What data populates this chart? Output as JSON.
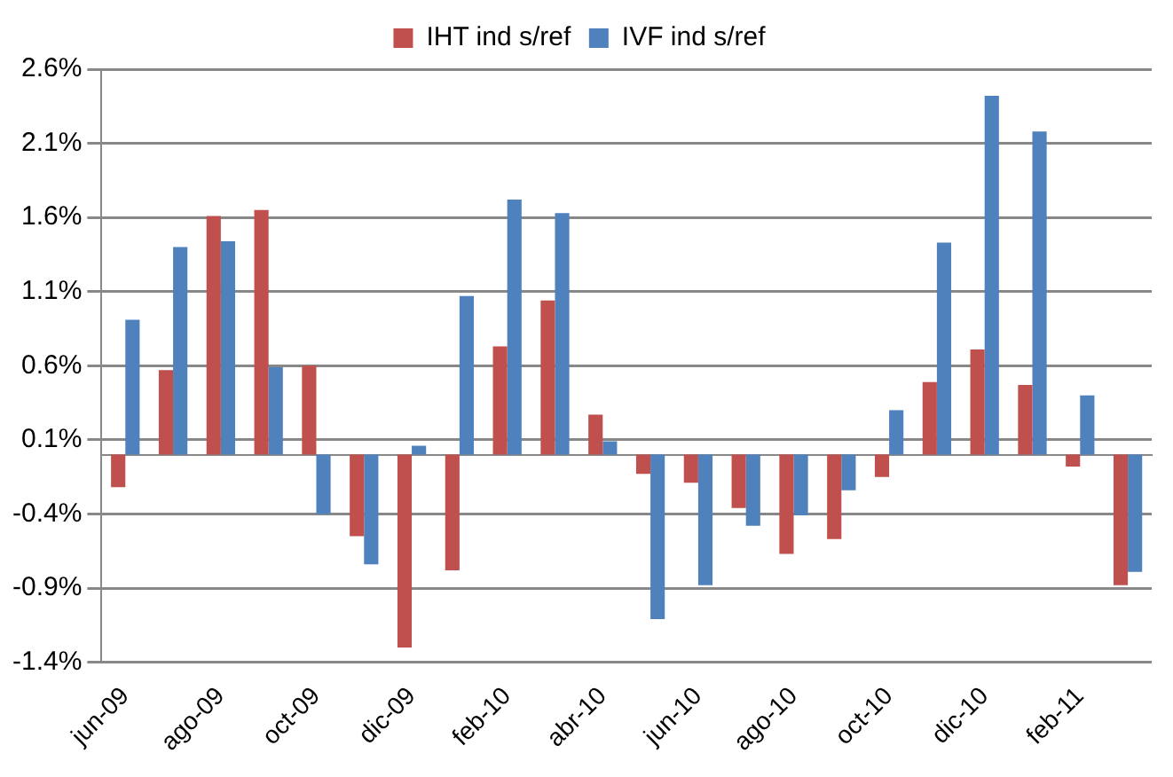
{
  "chart_data": {
    "type": "bar",
    "categories": [
      "jun-09",
      null,
      "ago-09",
      null,
      "oct-09",
      null,
      "dic-09",
      null,
      "feb-10",
      null,
      "abr-10",
      null,
      "jun-10",
      null,
      "ago-10",
      null,
      "oct-10",
      null,
      "dic-10",
      null,
      "feb-11",
      null
    ],
    "series": [
      {
        "name": "IHT ind s/ref",
        "color": "#c0504d",
        "values": [
          -0.22,
          0.57,
          1.61,
          1.65,
          0.6,
          -0.55,
          -1.3,
          -0.78,
          0.73,
          1.04,
          0.27,
          -0.13,
          -0.19,
          -0.36,
          -0.67,
          -0.57,
          -0.15,
          0.49,
          0.71,
          0.47,
          -0.08,
          -0.88
        ]
      },
      {
        "name": "IVF ind s/ref",
        "color": "#4f81bd",
        "values": [
          0.91,
          1.4,
          1.44,
          0.59,
          -0.4,
          -0.74,
          0.06,
          1.07,
          1.72,
          1.63,
          0.09,
          -1.11,
          -0.88,
          -0.48,
          -0.41,
          -0.24,
          0.3,
          1.43,
          2.42,
          2.18,
          0.4,
          -0.79
        ]
      }
    ],
    "ylim": [
      -1.4,
      2.6
    ],
    "yticks": [
      {
        "value": -1.4,
        "label": "-1.4%"
      },
      {
        "value": -0.9,
        "label": "-0.9%"
      },
      {
        "value": -0.4,
        "label": "-0.4%"
      },
      {
        "value": 0.1,
        "label": "0.1%"
      },
      {
        "value": 0.6,
        "label": "0.6%"
      },
      {
        "value": 1.1,
        "label": "1.1%"
      },
      {
        "value": 1.6,
        "label": "1.6%"
      },
      {
        "value": 2.1,
        "label": "2.1%"
      },
      {
        "value": 2.6,
        "label": "2.6%"
      }
    ],
    "grid": "y",
    "legend": "top"
  }
}
